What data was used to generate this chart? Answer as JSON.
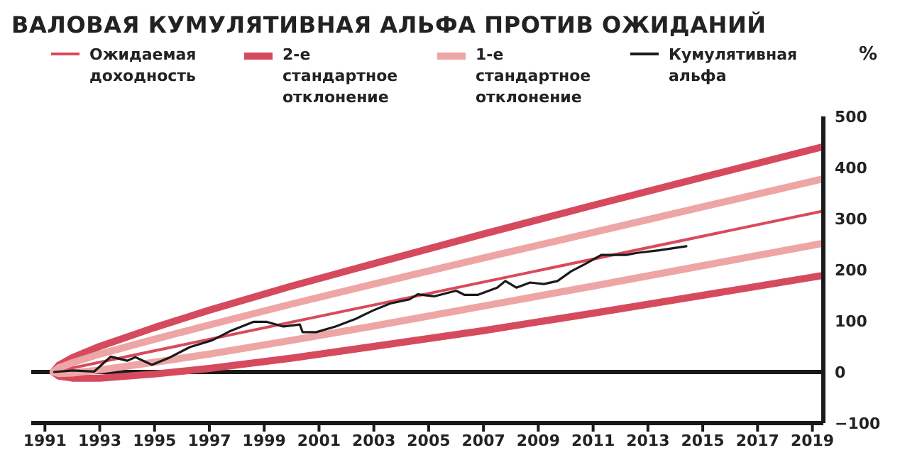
{
  "chart_data": {
    "type": "line",
    "title": "ВАЛОВАЯ КУМУЛЯТИВНАЯ АЛЬФА ПРОТИВ ОЖИДАНИЙ",
    "ylabel": "%",
    "legend": "top",
    "grid": false,
    "marker": "none",
    "line_style": "solid",
    "xlim": [
      1990.5,
      2019.4
    ],
    "xticks": [
      1991,
      1993,
      1995,
      1997,
      1999,
      2001,
      2003,
      2005,
      2007,
      2009,
      2011,
      2013,
      2015,
      2017,
      2019
    ],
    "ylim": [
      -100,
      500
    ],
    "yticks": [
      -100,
      0,
      100,
      200,
      300,
      400,
      500
    ],
    "ref_lines": [
      {
        "axis": "y",
        "value": 0,
        "color": "#1a1a1a"
      }
    ],
    "series": [
      {
        "name": "Ожидаемая доходность",
        "color": "#d94a5c",
        "x": [
          1991.3,
          2019.4
        ],
        "values": [
          0,
          315
        ]
      },
      {
        "name": "2-е стандартное отклонение",
        "color": "#d64a5e",
        "x": [
          1991.3,
          1991.5,
          1992,
          1993,
          1995,
          1997,
          2000,
          2003,
          2007,
          2011,
          2015,
          2019.4
        ],
        "values": [
          0,
          13,
          28,
          50,
          87,
          121,
          168,
          212,
          270,
          326,
          381,
          441
        ]
      },
      {
        "color": "#d64a5e",
        "x": [
          1991.3,
          1991.5,
          1992,
          1993,
          1995,
          1997,
          2000,
          2003,
          2007,
          2011,
          2015,
          2019.4
        ],
        "values": [
          0,
          -8,
          -12,
          -12,
          -4,
          7,
          27,
          50,
          81,
          115,
          150,
          189
        ]
      },
      {
        "name": "1-е стандартное отклонение",
        "color": "#eea5a5",
        "x": [
          1991.3,
          1991.5,
          1992,
          1993,
          1995,
          1997,
          2000,
          2003,
          2007,
          2011,
          2015,
          2019.4
        ],
        "values": [
          0,
          8,
          18,
          35,
          64,
          92,
          133,
          172,
          223,
          273,
          323,
          378
        ]
      },
      {
        "color": "#eea5a5",
        "x": [
          1991.3,
          1991.5,
          1992,
          1993,
          1995,
          1997,
          2000,
          2003,
          2007,
          2011,
          2015,
          2019.4
        ],
        "values": [
          0,
          -3,
          -2,
          4,
          19,
          35,
          62,
          90,
          129,
          168,
          208,
          252
        ]
      },
      {
        "name": "Кумулятивная альфа",
        "color": "#1a1a1a",
        "x": [
          1991.34,
          1992.0,
          1992.8,
          1993.4,
          1994.0,
          1994.3,
          1994.9,
          1995.5,
          1996.3,
          1997.1,
          1997.8,
          1998.6,
          1999.1,
          1999.7,
          2000.3,
          2000.4,
          2000.9,
          2001.6,
          2002.3,
          2003.0,
          2003.6,
          2004.3,
          2004.6,
          2005.2,
          2006.0,
          2006.3,
          2006.8,
          2007.5,
          2007.8,
          2008.2,
          2008.7,
          2009.2,
          2009.7,
          2010.2,
          2010.7,
          2011.3,
          2012.2,
          2012.6,
          2013.4,
          2014.4
        ],
        "values": [
          0,
          3,
          1,
          30,
          22,
          29,
          14,
          27,
          49,
          62,
          81,
          98,
          98,
          89,
          93,
          78,
          78,
          89,
          103,
          121,
          134,
          142,
          152,
          148,
          159,
          151,
          151,
          165,
          178,
          165,
          175,
          172,
          178,
          197,
          211,
          229,
          229,
          233,
          238,
          246
        ]
      }
    ]
  }
}
